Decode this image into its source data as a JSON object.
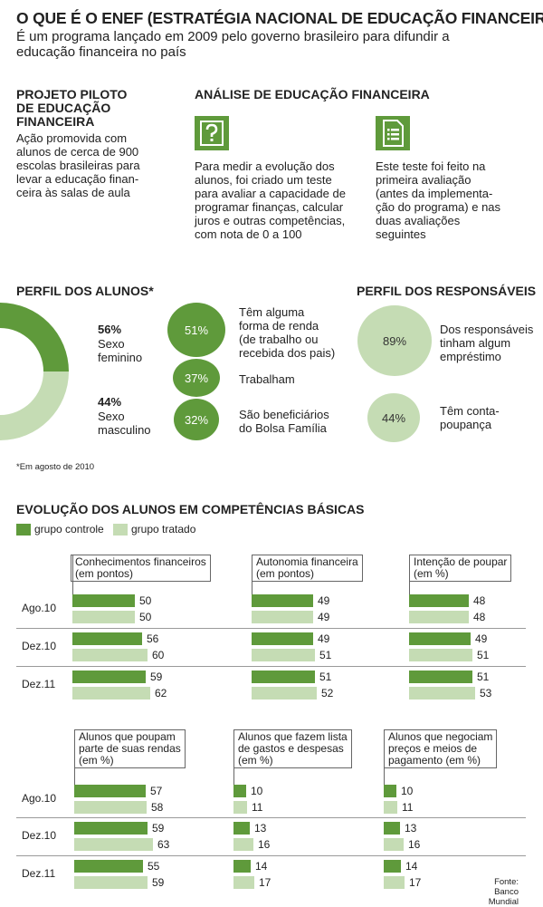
{
  "header": {
    "title": "O QUE É O ENEF (ESTRATÉGIA NACIONAL DE EDUCAÇÃO FINANCEIRA)",
    "subtitle": "É um programa lançado em 2009 pelo governo brasileiro para difundir a educação financeira no país"
  },
  "projeto": {
    "title_lines": [
      "PROJETO PILOTO",
      "DE EDUCAÇÃO",
      "FINANCEIRA"
    ],
    "text_lines": [
      "Ação promovida com",
      "alunos de cerca de 900",
      "escolas brasileiras para",
      "levar a educação finan-",
      "ceira às salas de aula"
    ]
  },
  "analise": {
    "title": "ANÁLISE DE EDUCAÇÃO FINANCEIRA",
    "item1_icon": "question-mark-icon",
    "item1_lines": [
      "Para medir a evolução dos",
      "alunos, foi criado um teste",
      "para avaliar a capacidade de",
      "programar finanças, calcular",
      "juros e outras competências,",
      "com nota de 0 a 100"
    ],
    "item2_icon": "document-list-icon",
    "item2_lines": [
      "Este teste foi feito na",
      "primeira avaliação",
      "(antes da implementa-",
      "ção do programa) e nas",
      "duas avaliações",
      "seguintes"
    ]
  },
  "perfil_alunos": {
    "title": "PERFIL DOS ALUNOS*",
    "female_pct": "56%",
    "female_lines": [
      "Sexo",
      "feminino"
    ],
    "male_pct": "44%",
    "male_lines": [
      "Sexo",
      "masculino"
    ],
    "bubbles": [
      {
        "pct": "51%",
        "lines": [
          "Têm alguma",
          "forma de renda",
          "(de trabalho ou",
          "recebida dos pais)"
        ]
      },
      {
        "pct": "37%",
        "lines": [
          "Trabalham"
        ]
      },
      {
        "pct": "32%",
        "lines": [
          "São beneficiários",
          "do Bolsa Família"
        ]
      }
    ],
    "footnote": "*Em agosto de 2010"
  },
  "perfil_responsaveis": {
    "title": "PERFIL DOS RESPONSÁVEIS",
    "bubbles": [
      {
        "pct": "89%",
        "lines": [
          "Dos responsáveis",
          "tinham algum",
          "empréstimo"
        ]
      },
      {
        "pct": "44%",
        "lines": [
          "Têm conta-",
          "poupança"
        ]
      }
    ]
  },
  "evolucao": {
    "title": "EVOLUÇÃO DOS ALUNOS EM COMPETÊNCIAS BÁSICAS",
    "legend_control": "grupo controle",
    "legend_treated": "grupo tratado",
    "row_labels": [
      "Ago.10",
      "Dez.10",
      "Dez.11"
    ]
  },
  "colors": {
    "control": "#5f9a3b",
    "treated": "#c5dcb4"
  },
  "source_lines": [
    "Fonte:",
    "Banco Mundial"
  ],
  "chart_data": [
    {
      "type": "bar",
      "title_lines": [
        "Conhecimentos financeiros",
        "(em pontos)"
      ],
      "categories": [
        "Ago.10",
        "Dez.10",
        "Dez.11"
      ],
      "series": [
        {
          "name": "grupo controle",
          "values": [
            50,
            56,
            59
          ]
        },
        {
          "name": "grupo tratado",
          "values": [
            50,
            60,
            62
          ]
        }
      ]
    },
    {
      "type": "bar",
      "title_lines": [
        "Autonomia financeira",
        "(em pontos)"
      ],
      "categories": [
        "Ago.10",
        "Dez.10",
        "Dez.11"
      ],
      "series": [
        {
          "name": "grupo controle",
          "values": [
            49,
            49,
            51
          ]
        },
        {
          "name": "grupo tratado",
          "values": [
            49,
            51,
            52
          ]
        }
      ]
    },
    {
      "type": "bar",
      "title_lines": [
        "Intenção de poupar",
        "(em %)"
      ],
      "categories": [
        "Ago.10",
        "Dez.10",
        "Dez.11"
      ],
      "series": [
        {
          "name": "grupo controle",
          "values": [
            48,
            49,
            51
          ]
        },
        {
          "name": "grupo tratado",
          "values": [
            48,
            51,
            53
          ]
        }
      ]
    },
    {
      "type": "bar",
      "title_lines": [
        "Alunos que poupam",
        "parte de suas rendas",
        "(em %)"
      ],
      "categories": [
        "Ago.10",
        "Dez.10",
        "Dez.11"
      ],
      "series": [
        {
          "name": "grupo controle",
          "values": [
            57,
            59,
            55
          ]
        },
        {
          "name": "grupo tratado",
          "values": [
            58,
            63,
            59
          ]
        }
      ]
    },
    {
      "type": "bar",
      "title_lines": [
        "Alunos que fazem lista",
        "de gastos e despesas",
        "(em %)"
      ],
      "categories": [
        "Ago.10",
        "Dez.10",
        "Dez.11"
      ],
      "series": [
        {
          "name": "grupo controle",
          "values": [
            10,
            13,
            14
          ]
        },
        {
          "name": "grupo tratado",
          "values": [
            11,
            16,
            17
          ]
        }
      ]
    },
    {
      "type": "bar",
      "title_lines": [
        "Alunos que negociam",
        "preços e meios de",
        "pagamento (em %)"
      ],
      "categories": [
        "Ago.10",
        "Dez.10",
        "Dez.11"
      ],
      "series": [
        {
          "name": "grupo controle",
          "values": [
            10,
            13,
            14
          ]
        },
        {
          "name": "grupo tratado",
          "values": [
            11,
            16,
            17
          ]
        }
      ]
    }
  ]
}
